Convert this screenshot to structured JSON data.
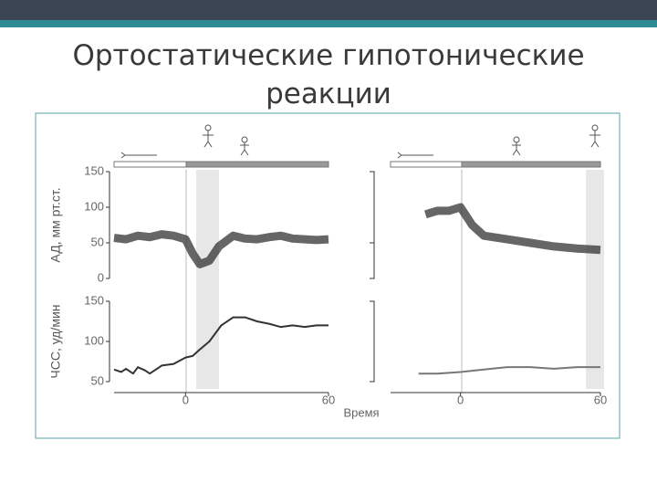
{
  "header": {
    "title": "Ортостатические гипотонические реакции"
  },
  "chart_data": [
    {
      "type": "band",
      "y_label": "АД, мм рт.ст.",
      "color": "#333333",
      "x": [
        -30,
        -25,
        -20,
        -15,
        -10,
        -5,
        0,
        3,
        6,
        10,
        14,
        20,
        25,
        30,
        35,
        40,
        45,
        50,
        55,
        60
      ],
      "values": [
        57,
        55,
        60,
        58,
        62,
        60,
        55,
        35,
        20,
        25,
        45,
        60,
        56,
        55,
        58,
        60,
        56,
        55,
        54,
        55
      ],
      "xlim": [
        -30,
        60
      ],
      "ylim": [
        0,
        150
      ],
      "yticks": [
        0,
        50,
        100,
        150
      ]
    },
    {
      "type": "line",
      "y_label": "ЧСС, уд/мин",
      "color": "#333333",
      "x": [
        -30,
        -27,
        -25,
        -22,
        -20,
        -17,
        -15,
        -12,
        -10,
        -5,
        0,
        3,
        6,
        10,
        15,
        20,
        25,
        30,
        35,
        40,
        45,
        50,
        55,
        60
      ],
      "values": [
        65,
        62,
        66,
        60,
        68,
        64,
        60,
        66,
        70,
        72,
        80,
        82,
        90,
        100,
        120,
        130,
        130,
        125,
        122,
        118,
        120,
        118,
        120,
        120
      ],
      "xlim": [
        -30,
        60
      ],
      "ylim": [
        50,
        150
      ],
      "yticks": [
        50,
        100,
        150
      ],
      "xticks": [
        0,
        60
      ]
    },
    {
      "type": "band",
      "color": "#333333",
      "x": [
        -15,
        -10,
        -5,
        0,
        5,
        10,
        20,
        30,
        40,
        50,
        60
      ],
      "values": [
        90,
        95,
        95,
        100,
        75,
        60,
        55,
        50,
        45,
        42,
        40
      ],
      "xlim": [
        -30,
        60
      ],
      "ylim": [
        0,
        150
      ]
    },
    {
      "type": "line",
      "color": "#777777",
      "x_label": "Время",
      "x": [
        -18,
        -10,
        0,
        10,
        20,
        30,
        40,
        50,
        60
      ],
      "values": [
        60,
        60,
        62,
        65,
        68,
        68,
        66,
        68,
        68
      ],
      "xlim": [
        -30,
        60
      ],
      "ylim": [
        50,
        150
      ],
      "xticks": [
        0,
        60
      ]
    }
  ]
}
